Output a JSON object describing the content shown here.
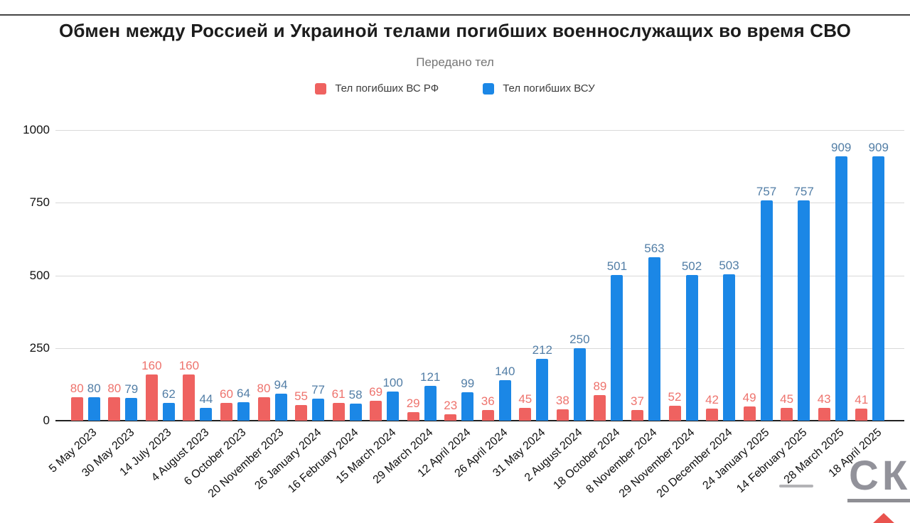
{
  "chart_data": {
    "type": "bar",
    "title": "Обмен между Россией и Украиной телами погибших военнослужащих во время СВО",
    "subtitle": "Передано тел",
    "categories": [
      "5 May 2023",
      "30 May 2023",
      "14 July 2023",
      "4 August 2023",
      "6 October 2023",
      "20 November 2023",
      "26 January 2024",
      "16 February 2024",
      "15 March 2024",
      "29 March 2024",
      "12 April 2024",
      "26 April 2024",
      "31 May 2024",
      "2 August 2024",
      "18 October 2024",
      "8 November 2024",
      "29 November 2024",
      "20 December 2024",
      "24 January 2025",
      "14 February 2025",
      "28 March 2025",
      "18 April 2025"
    ],
    "series": [
      {
        "name": "Тел погибших ВС  РФ",
        "color": "#ef6260",
        "label_color": "#ee736d",
        "values": [
          80,
          80,
          160,
          160,
          60,
          80,
          55,
          61,
          69,
          29,
          23,
          36,
          45,
          38,
          89,
          37,
          52,
          42,
          49,
          45,
          43,
          41
        ]
      },
      {
        "name": "Тел погибших ВСУ",
        "color": "#1b87e6",
        "label_color": "#527ea6",
        "values": [
          80,
          79,
          62,
          44,
          64,
          94,
          77,
          58,
          100,
          121,
          99,
          140,
          212,
          250,
          501,
          563,
          502,
          503,
          757,
          757,
          909,
          909
        ]
      }
    ],
    "ylim": [
      0,
      1000
    ],
    "yticks": [
      0,
      250,
      500,
      750,
      1000
    ],
    "grid": true,
    "legend_position": "top",
    "data_labels": true
  },
  "watermark": {
    "text": "СК",
    "text_color": "#92929a",
    "accent_color": "#e9534e"
  }
}
